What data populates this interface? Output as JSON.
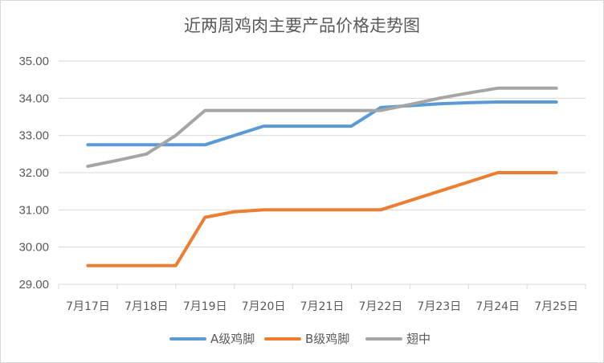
{
  "chart_data": {
    "type": "line",
    "title": "近两周鸡肉主要产品价格走势图",
    "categories": [
      "7月17日",
      "7月18日",
      "7月19日",
      "7月20日",
      "7月21日",
      "7月22日",
      "7月23日",
      "7月24日",
      "7月25日"
    ],
    "x": [
      0,
      0.5,
      1,
      1.5,
      2,
      2.5,
      3,
      3.5,
      4,
      4.5,
      5,
      5.5,
      6,
      6.5,
      7,
      7.5,
      8
    ],
    "ylim": [
      29,
      35
    ],
    "yticks": [
      "29.00",
      "30.00",
      "31.00",
      "32.00",
      "33.00",
      "34.00",
      "35.00"
    ],
    "grid": true,
    "legend_position": "bottom",
    "series": [
      {
        "name": "A级鸡脚",
        "color": "#5b9bd5",
        "values": [
          32.75,
          32.75,
          32.75,
          32.75,
          32.75,
          33.0,
          33.25,
          33.25,
          33.25,
          33.25,
          33.75,
          33.8,
          33.85,
          33.88,
          33.9,
          33.9,
          33.9
        ]
      },
      {
        "name": "B级鸡脚",
        "color": "#ed7d31",
        "values": [
          29.5,
          29.5,
          29.5,
          29.5,
          30.8,
          30.95,
          31.0,
          31.0,
          31.0,
          31.0,
          31.0,
          31.25,
          31.5,
          31.75,
          32.0,
          32.0,
          32.0
        ]
      },
      {
        "name": "翅中",
        "color": "#a5a5a5",
        "values": [
          32.17,
          32.33,
          32.5,
          33.0,
          33.67,
          33.67,
          33.67,
          33.67,
          33.67,
          33.67,
          33.67,
          33.83,
          34.0,
          34.14,
          34.27,
          34.27,
          34.27
        ]
      }
    ]
  }
}
